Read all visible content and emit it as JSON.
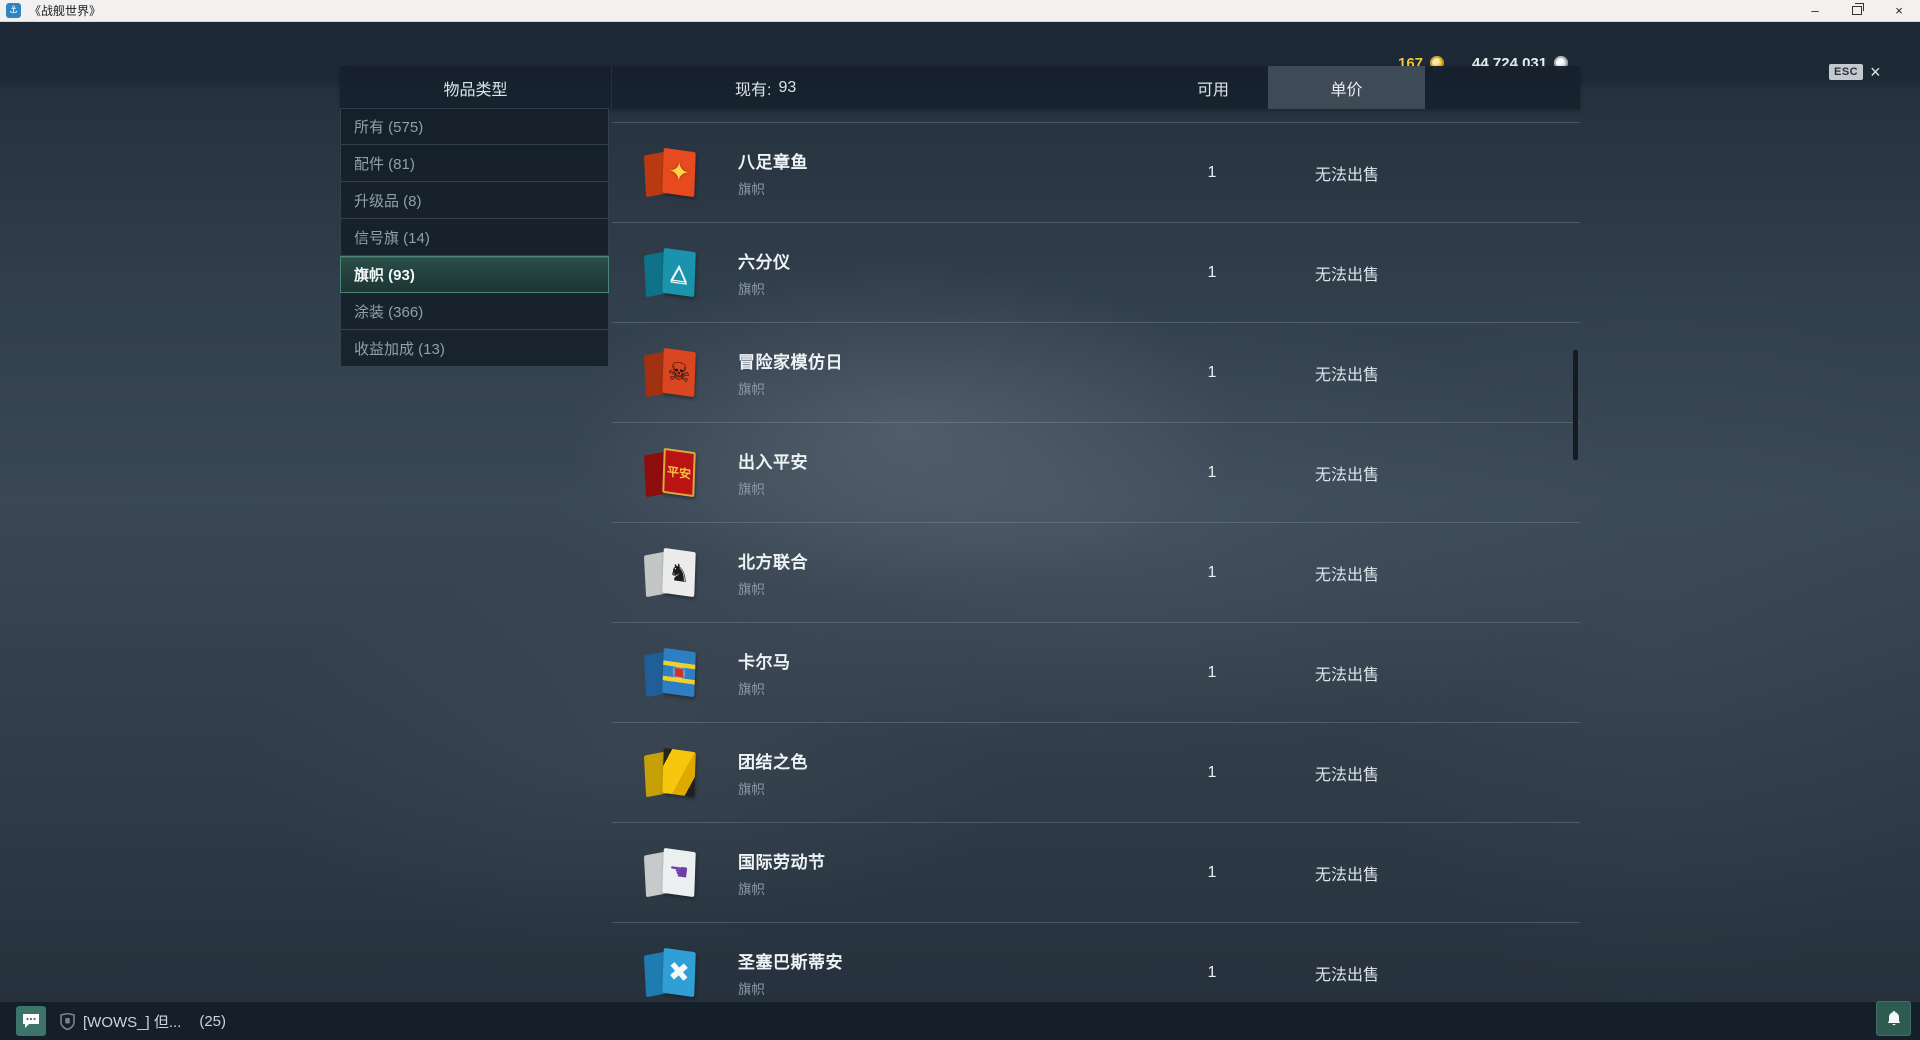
{
  "window": {
    "title": "《战舰世界》",
    "app_icon_glyph": "⚓",
    "minimize_glyph": "–",
    "close_glyph": "×"
  },
  "topbar": {
    "gold_amount": "167",
    "credits_amount": "44 724 031",
    "esc_label": "ESC",
    "esc_close_glyph": "×"
  },
  "header": {
    "item_type": "物品类型",
    "current_label": "现有:",
    "current_count": "93",
    "available": "可用",
    "unit_price": "单价"
  },
  "sidebar": {
    "items": [
      {
        "label": "所有 (575)",
        "selected": false
      },
      {
        "label": "配件 (81)",
        "selected": false
      },
      {
        "label": "升级品 (8)",
        "selected": false
      },
      {
        "label": "信号旗 (14)",
        "selected": false
      },
      {
        "label": "旗帜 (93)",
        "selected": true
      },
      {
        "label": "涂装 (366)",
        "selected": false
      },
      {
        "label": "收益加成 (13)",
        "selected": false
      }
    ]
  },
  "items": [
    {
      "name": "八足章鱼",
      "type": "旗帜",
      "quantity": "1",
      "price": "无法出售",
      "icon": {
        "flag": "#e64a1e",
        "fold": "#b93a10",
        "emblem": "✦",
        "emblem_color": "#ffd24a",
        "emblem_size": "26px",
        "emblem_shadow": "0 0 2px #7a2a00"
      }
    },
    {
      "name": "六分仪",
      "type": "旗帜",
      "quantity": "1",
      "price": "无法出售",
      "icon": {
        "flag": "#1a93ad",
        "fold": "#0e7288",
        "emblem": "△",
        "emblem_color": "#f2f7f8",
        "emblem_size": "22px",
        "emblem_shadow": "0 2px 0 #f2f7f8"
      }
    },
    {
      "name": "冒险家模仿日",
      "type": "旗帜",
      "quantity": "1",
      "price": "无法出售",
      "icon": {
        "flag": "#d94620",
        "fold": "#a23111",
        "emblem": "☠",
        "emblem_color": "#1f1410",
        "emblem_size": "26px"
      }
    },
    {
      "name": "出入平安",
      "type": "旗帜",
      "quantity": "1",
      "price": "无法出售",
      "icon": {
        "flag": "#bb1313",
        "fold": "#8d0d0d",
        "emblem": "平安",
        "emblem_color": "#f2c243",
        "emblem_size": "12px",
        "border_css": "2px solid #d9a93c"
      }
    },
    {
      "name": "北方联合",
      "type": "旗帜",
      "quantity": "1",
      "price": "无法出售",
      "icon": {
        "flag": "#ececec",
        "fold": "#c3c6c7",
        "emblem": "♞",
        "emblem_color": "#1c1c1c",
        "emblem_size": "24px"
      }
    },
    {
      "name": "卡尔马",
      "type": "旗帜",
      "quantity": "1",
      "price": "无法出售",
      "icon": {
        "flag": "#2e7ec4",
        "fold": "#1f5e96",
        "bg_css": "linear-gradient(180deg,#2e7ec4 0 28%,#f2cf2b 28% 38%,#2e7ec4 38% 62%,#f2cf2b 62% 72%,#2e7ec4 72% 100%)",
        "emblem": "◼",
        "emblem_color": "#cf3327",
        "emblem_size": "13px",
        "emblem_shadow": "0 0 3px #ffffff"
      }
    },
    {
      "name": "团结之色",
      "type": "旗帜",
      "quantity": "1",
      "price": "无法出售",
      "icon": {
        "flag": "#f6c70c",
        "fold": "#c79f06",
        "bg_css": "linear-gradient(115deg,#2a2418 0 16%,#f6c70c 16% 58%,#dfa900 58% 82%,#20201e 82% 100%)",
        "emblem": "",
        "emblem_color": "#000000",
        "emblem_size": "10px"
      }
    },
    {
      "name": "国际劳动节",
      "type": "旗帜",
      "quantity": "1",
      "price": "无法出售",
      "icon": {
        "flag": "#eceff0",
        "fold": "#c6cacb",
        "emblem": "☚",
        "emblem_color": "#6b3fa3",
        "emblem_size": "22px"
      }
    },
    {
      "name": "圣塞巴斯蒂安",
      "type": "旗帜",
      "quantity": "1",
      "price": "无法出售",
      "icon": {
        "flag": "#2f9fd6",
        "fold": "#1f7cb0",
        "emblem": "✖",
        "emblem_color": "#f4f9fb",
        "emblem_size": "26px"
      }
    }
  ],
  "chat": {
    "clan": "[WOWS_] 但...",
    "count": "(25)"
  },
  "colors": {
    "accent_teal": "#4c8577",
    "header_bg": "#16212d",
    "sort_cell_bg": "#3e4a55",
    "gold_text": "#f5c43c",
    "bottom_bar": "#141f29",
    "chat_button": "#3c7469",
    "bell_button": "#2e5b51"
  }
}
